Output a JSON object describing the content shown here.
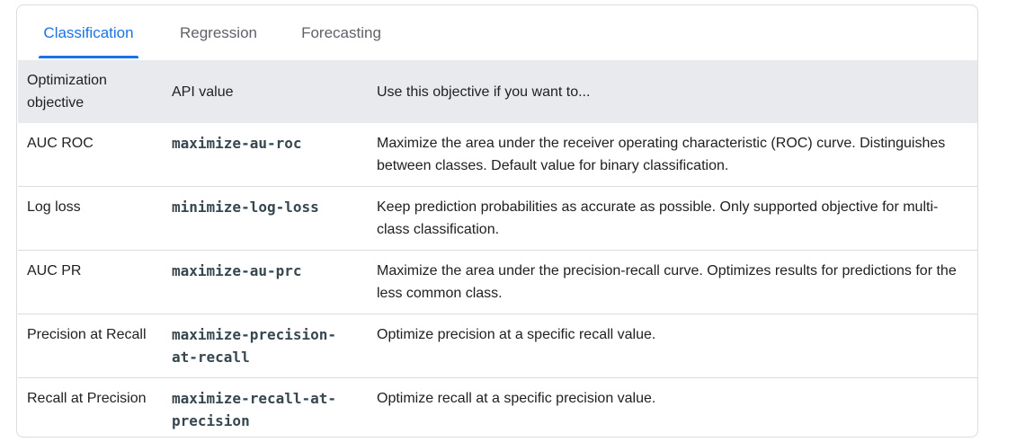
{
  "tabs": [
    {
      "label": "Classification",
      "active": true
    },
    {
      "label": "Regression",
      "active": false
    },
    {
      "label": "Forecasting",
      "active": false
    }
  ],
  "colors": {
    "accent": "#1a73e8",
    "header_bg": "#e8eaed"
  },
  "table": {
    "headers": [
      "Optimization objective",
      "API value",
      "Use this objective if you want to..."
    ],
    "rows": [
      {
        "objective": "AUC ROC",
        "api": "maximize-au-roc",
        "use": "Maximize the area under the receiver operating characteristic (ROC) curve. Distinguishes between classes. Default value for binary classification."
      },
      {
        "objective": "Log loss",
        "api": "minimize-log-loss",
        "use": "Keep prediction probabilities as accurate as possible. Only supported objective for multi-class classification."
      },
      {
        "objective": "AUC PR",
        "api": "maximize-au-prc",
        "use": "Maximize the area under the precision-recall curve. Optimizes results for predictions for the less common class."
      },
      {
        "objective": "Precision at Recall",
        "api": "maximize-precision-at-recall",
        "use": "Optimize precision at a specific recall value."
      },
      {
        "objective": "Recall at Precision",
        "api": "maximize-recall-at-precision",
        "use": "Optimize recall at a specific precision value."
      }
    ]
  }
}
